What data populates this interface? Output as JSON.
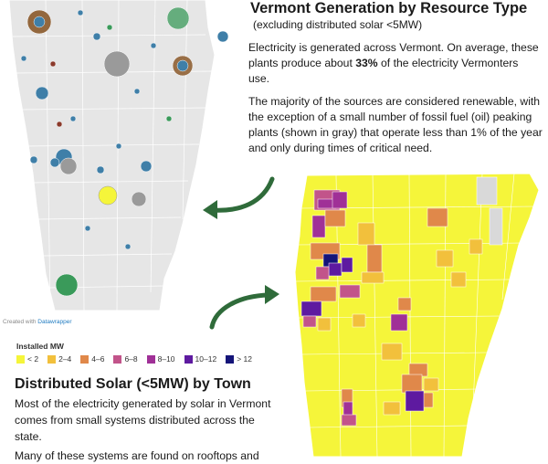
{
  "top": {
    "title": "Vermont Generation by Resource Type",
    "subtitle": "(excluding distributed solar <5MW)",
    "para1_before": "Electricity is generated across Vermont. On average, these plants produce about ",
    "para1_bold": "33%",
    "para1_after": " of the electricity Vermonters use.",
    "para2": "The majority of the sources are considered renewable, with the exception of a small number of fossil fuel (oil) peaking plants (shown in gray) that operate less than 1% of the year and only during times of critical need."
  },
  "credit": {
    "prefix": "Created with ",
    "link": "Datawrapper"
  },
  "legend": {
    "title": "Installed MW",
    "items": [
      {
        "label": "< 2",
        "color": "#f5f53a"
      },
      {
        "label": "2–4",
        "color": "#f2c03c"
      },
      {
        "label": "4–6",
        "color": "#e0884a"
      },
      {
        "label": "6–8",
        "color": "#c2548a"
      },
      {
        "label": "8–10",
        "color": "#a03097"
      },
      {
        "label": "10–12",
        "color": "#5e1aa0"
      },
      {
        "label": "> 12",
        "color": "#141479"
      }
    ]
  },
  "bottom": {
    "heading": "Distributed Solar (<5MW) by Town",
    "body": "Most of the electricity generated by solar in Vermont comes from small systems distributed across the state.",
    "body_partial": "Many of these systems are found on rooftops and"
  },
  "colors": {
    "hydro": "#3f7fa8",
    "biomass": "#8b5a2b",
    "wind": "#3a9a5a",
    "fossil": "#9a9a9a",
    "solar": "#f5f53a",
    "arrow": "#2f6b3a"
  }
}
